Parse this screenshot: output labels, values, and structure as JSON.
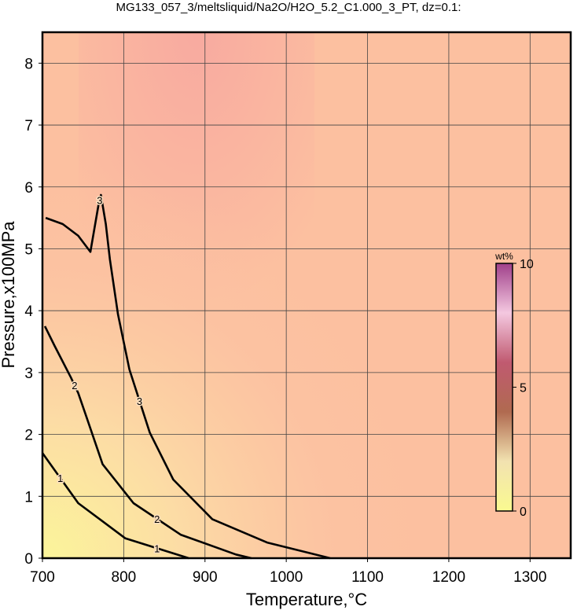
{
  "chart_data": {
    "type": "contour",
    "title": "MG133_057_3/meltsliquid/Na2O/H2O_5.2_C1.000_3_PT, dz=0.1:",
    "xlabel": "Temperature,°C",
    "ylabel": "Pressure,x100MPa",
    "xlim": [
      700,
      1350
    ],
    "ylim": [
      0,
      8.5
    ],
    "xticks": [
      700,
      800,
      900,
      1000,
      1100,
      1200,
      1300
    ],
    "yticks": [
      0,
      1,
      2,
      3,
      4,
      5,
      6,
      7,
      8
    ],
    "grid": true,
    "line_color": "#000000",
    "contours": [
      {
        "level": 1,
        "x": [
          700,
          744,
          802,
          880
        ],
        "y": [
          1.7,
          0.89,
          0.32,
          0
        ]
      },
      {
        "level": 2,
        "x": [
          703,
          715,
          735,
          744,
          754,
          774,
          812,
          870,
          938,
          957
        ],
        "y": [
          3.75,
          3.43,
          2.92,
          2.67,
          2.29,
          1.52,
          0.89,
          0.38,
          0.06,
          0
        ]
      },
      {
        "level": 3,
        "x": [
          704,
          725,
          744,
          759,
          769,
          772,
          778,
          783,
          793,
          807,
          832,
          861,
          909,
          977,
          1054
        ],
        "y": [
          5.5,
          5.4,
          5.21,
          4.95,
          5.71,
          5.87,
          5.4,
          4.83,
          3.94,
          3.05,
          2.03,
          1.27,
          0.63,
          0.25,
          0
        ]
      }
    ],
    "colorbar": {
      "label": "wt%",
      "lim": [
        0,
        10
      ],
      "ticks": [
        0,
        5,
        10
      ],
      "colors": [
        "#fafa90",
        "#f2e2b0",
        "#b06a50",
        "#c05a70",
        "#f4c8e0",
        "#a0408a"
      ]
    }
  }
}
